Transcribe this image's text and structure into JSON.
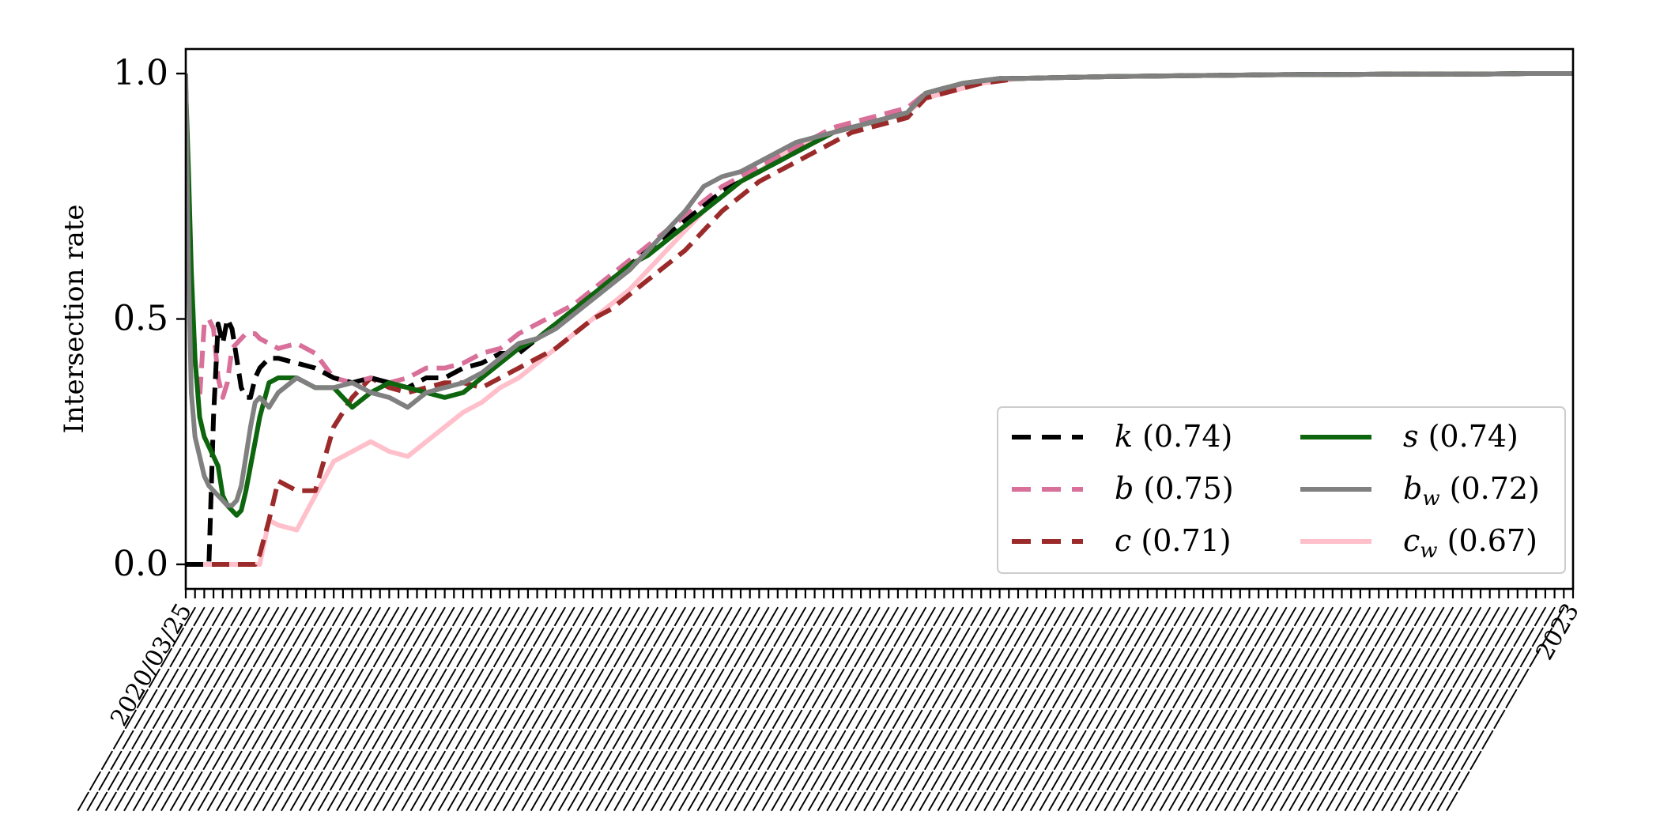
{
  "chart_data": {
    "type": "line",
    "title": "",
    "xlabel": "",
    "ylabel": "Intersection rate",
    "ylim": [
      -0.05,
      1.05
    ],
    "yticks": [
      0.0,
      0.5,
      1.0
    ],
    "ytick_labels": [
      "0.0",
      "0.5",
      "1.0"
    ],
    "grid": false,
    "legend_position": "lower-right",
    "legend_columns": 2,
    "x_axis": {
      "kind": "date",
      "tick_count": 150,
      "tick_labels_legible": false,
      "first_tick_label": "2020/03/25",
      "last_tick_label": "2023"
    },
    "x": [
      0,
      0.3,
      0.6,
      1,
      1.5,
      2,
      2.5,
      3,
      3.5,
      4,
      4.5,
      5,
      5.5,
      6,
      6.5,
      7,
      7.5,
      8,
      9,
      10,
      12,
      14,
      16,
      18,
      20,
      22,
      24,
      26,
      28,
      30,
      32,
      34,
      36,
      38,
      40,
      42,
      44,
      46,
      48,
      50,
      52,
      54,
      56,
      58,
      60,
      62,
      64,
      66,
      68,
      70,
      72,
      74,
      76,
      78,
      80,
      82,
      84,
      86,
      88,
      90,
      95,
      100,
      105,
      110,
      115,
      120,
      125,
      130,
      135,
      140,
      145,
      150
    ],
    "series": [
      {
        "name": "k",
        "legend_label": "(0.74)",
        "legend_sub": "",
        "color": "#000000",
        "dash": "dashed",
        "values": [
          0.0,
          0.0,
          0.0,
          0.0,
          0.0,
          0.0,
          0.0,
          0.3,
          0.49,
          0.45,
          0.5,
          0.48,
          0.42,
          0.36,
          0.34,
          0.34,
          0.38,
          0.4,
          0.42,
          0.42,
          0.41,
          0.4,
          0.38,
          0.37,
          0.38,
          0.37,
          0.36,
          0.38,
          0.38,
          0.4,
          0.41,
          0.43,
          0.43,
          0.46,
          0.49,
          0.52,
          0.55,
          0.58,
          0.61,
          0.64,
          0.67,
          0.7,
          0.73,
          0.76,
          0.78,
          0.8,
          0.82,
          0.84,
          0.86,
          0.88,
          0.89,
          0.9,
          0.91,
          0.92,
          0.96,
          0.97,
          0.98,
          0.985,
          0.99,
          0.99,
          0.992,
          0.994,
          0.995,
          0.996,
          0.997,
          0.998,
          0.998,
          0.999,
          0.999,
          0.999,
          1.0,
          1.0
        ]
      },
      {
        "name": "b",
        "legend_label": "(0.75)",
        "legend_sub": "",
        "color": "#d8709a",
        "dash": "dashed",
        "values": [
          0.97,
          0.75,
          0.55,
          0.4,
          0.34,
          0.49,
          0.5,
          0.48,
          0.38,
          0.34,
          0.37,
          0.44,
          0.45,
          0.46,
          0.47,
          0.47,
          0.47,
          0.46,
          0.45,
          0.44,
          0.45,
          0.43,
          0.38,
          0.37,
          0.38,
          0.37,
          0.38,
          0.4,
          0.4,
          0.41,
          0.43,
          0.44,
          0.47,
          0.49,
          0.51,
          0.53,
          0.56,
          0.59,
          0.62,
          0.65,
          0.68,
          0.71,
          0.74,
          0.77,
          0.79,
          0.81,
          0.83,
          0.85,
          0.87,
          0.89,
          0.9,
          0.91,
          0.92,
          0.93,
          0.96,
          0.97,
          0.98,
          0.985,
          0.99,
          0.99,
          0.992,
          0.994,
          0.995,
          0.996,
          0.997,
          0.998,
          0.998,
          0.999,
          0.999,
          0.999,
          1.0,
          1.0
        ]
      },
      {
        "name": "c",
        "legend_label": "(0.71)",
        "legend_sub": "",
        "color": "#9b2a2a",
        "dash": "dashed",
        "values": [
          0.0,
          0.0,
          0.0,
          0.0,
          0.0,
          0.0,
          0.0,
          0.0,
          0.0,
          0.0,
          0.0,
          0.0,
          0.0,
          0.0,
          0.0,
          0.0,
          0.0,
          0.02,
          0.09,
          0.17,
          0.15,
          0.15,
          0.28,
          0.34,
          0.38,
          0.36,
          0.35,
          0.36,
          0.37,
          0.37,
          0.36,
          0.38,
          0.4,
          0.42,
          0.44,
          0.47,
          0.5,
          0.52,
          0.55,
          0.58,
          0.61,
          0.64,
          0.68,
          0.72,
          0.75,
          0.78,
          0.8,
          0.82,
          0.84,
          0.86,
          0.88,
          0.89,
          0.9,
          0.91,
          0.95,
          0.96,
          0.97,
          0.98,
          0.985,
          0.99,
          0.992,
          0.994,
          0.995,
          0.996,
          0.997,
          0.998,
          0.998,
          0.999,
          0.999,
          0.999,
          1.0,
          1.0
        ]
      },
      {
        "name": "s",
        "legend_label": "(0.74)",
        "legend_sub": "",
        "color": "#0d650d",
        "dash": "solid",
        "values": [
          0.97,
          0.8,
          0.6,
          0.42,
          0.3,
          0.26,
          0.24,
          0.22,
          0.2,
          0.14,
          0.12,
          0.11,
          0.1,
          0.11,
          0.15,
          0.2,
          0.25,
          0.3,
          0.37,
          0.38,
          0.38,
          0.36,
          0.36,
          0.32,
          0.35,
          0.37,
          0.36,
          0.35,
          0.34,
          0.35,
          0.38,
          0.41,
          0.44,
          0.46,
          0.49,
          0.52,
          0.55,
          0.58,
          0.61,
          0.63,
          0.66,
          0.69,
          0.72,
          0.75,
          0.78,
          0.8,
          0.82,
          0.84,
          0.86,
          0.88,
          0.89,
          0.9,
          0.91,
          0.92,
          0.96,
          0.97,
          0.98,
          0.985,
          0.99,
          0.99,
          0.992,
          0.994,
          0.995,
          0.996,
          0.997,
          0.998,
          0.998,
          0.999,
          0.999,
          0.999,
          1.0,
          1.0
        ]
      },
      {
        "name": "b",
        "legend_label": "(0.72)",
        "legend_sub": "w",
        "color": "#808080",
        "dash": "solid",
        "values": [
          1.0,
          0.6,
          0.35,
          0.26,
          0.22,
          0.18,
          0.16,
          0.15,
          0.14,
          0.13,
          0.12,
          0.12,
          0.13,
          0.16,
          0.22,
          0.28,
          0.33,
          0.34,
          0.32,
          0.35,
          0.38,
          0.36,
          0.36,
          0.37,
          0.35,
          0.34,
          0.32,
          0.35,
          0.36,
          0.37,
          0.39,
          0.42,
          0.45,
          0.46,
          0.48,
          0.51,
          0.54,
          0.57,
          0.6,
          0.64,
          0.68,
          0.72,
          0.77,
          0.79,
          0.8,
          0.82,
          0.84,
          0.86,
          0.87,
          0.88,
          0.89,
          0.9,
          0.91,
          0.92,
          0.96,
          0.97,
          0.98,
          0.985,
          0.99,
          0.99,
          0.992,
          0.994,
          0.995,
          0.996,
          0.997,
          0.998,
          0.998,
          0.999,
          0.999,
          0.999,
          1.0,
          1.0
        ]
      },
      {
        "name": "c",
        "legend_label": "(0.67)",
        "legend_sub": "w",
        "color": "#ffc0cb",
        "dash": "solid",
        "values": [
          0.0,
          0.0,
          0.0,
          0.0,
          0.0,
          0.0,
          0.0,
          0.0,
          0.0,
          0.0,
          0.0,
          0.0,
          0.0,
          0.0,
          0.0,
          0.0,
          0.0,
          0.0,
          0.09,
          0.08,
          0.07,
          0.14,
          0.21,
          0.23,
          0.25,
          0.23,
          0.22,
          0.25,
          0.28,
          0.31,
          0.33,
          0.36,
          0.38,
          0.41,
          0.44,
          0.47,
          0.5,
          0.53,
          0.56,
          0.6,
          0.64,
          0.68,
          0.72,
          0.75,
          0.78,
          0.8,
          0.83,
          0.85,
          0.87,
          0.88,
          0.89,
          0.9,
          0.91,
          0.92,
          0.95,
          0.96,
          0.97,
          0.98,
          0.985,
          0.99,
          0.992,
          0.994,
          0.995,
          0.996,
          0.997,
          0.998,
          0.998,
          0.999,
          0.999,
          0.999,
          1.0,
          1.0
        ]
      }
    ]
  }
}
